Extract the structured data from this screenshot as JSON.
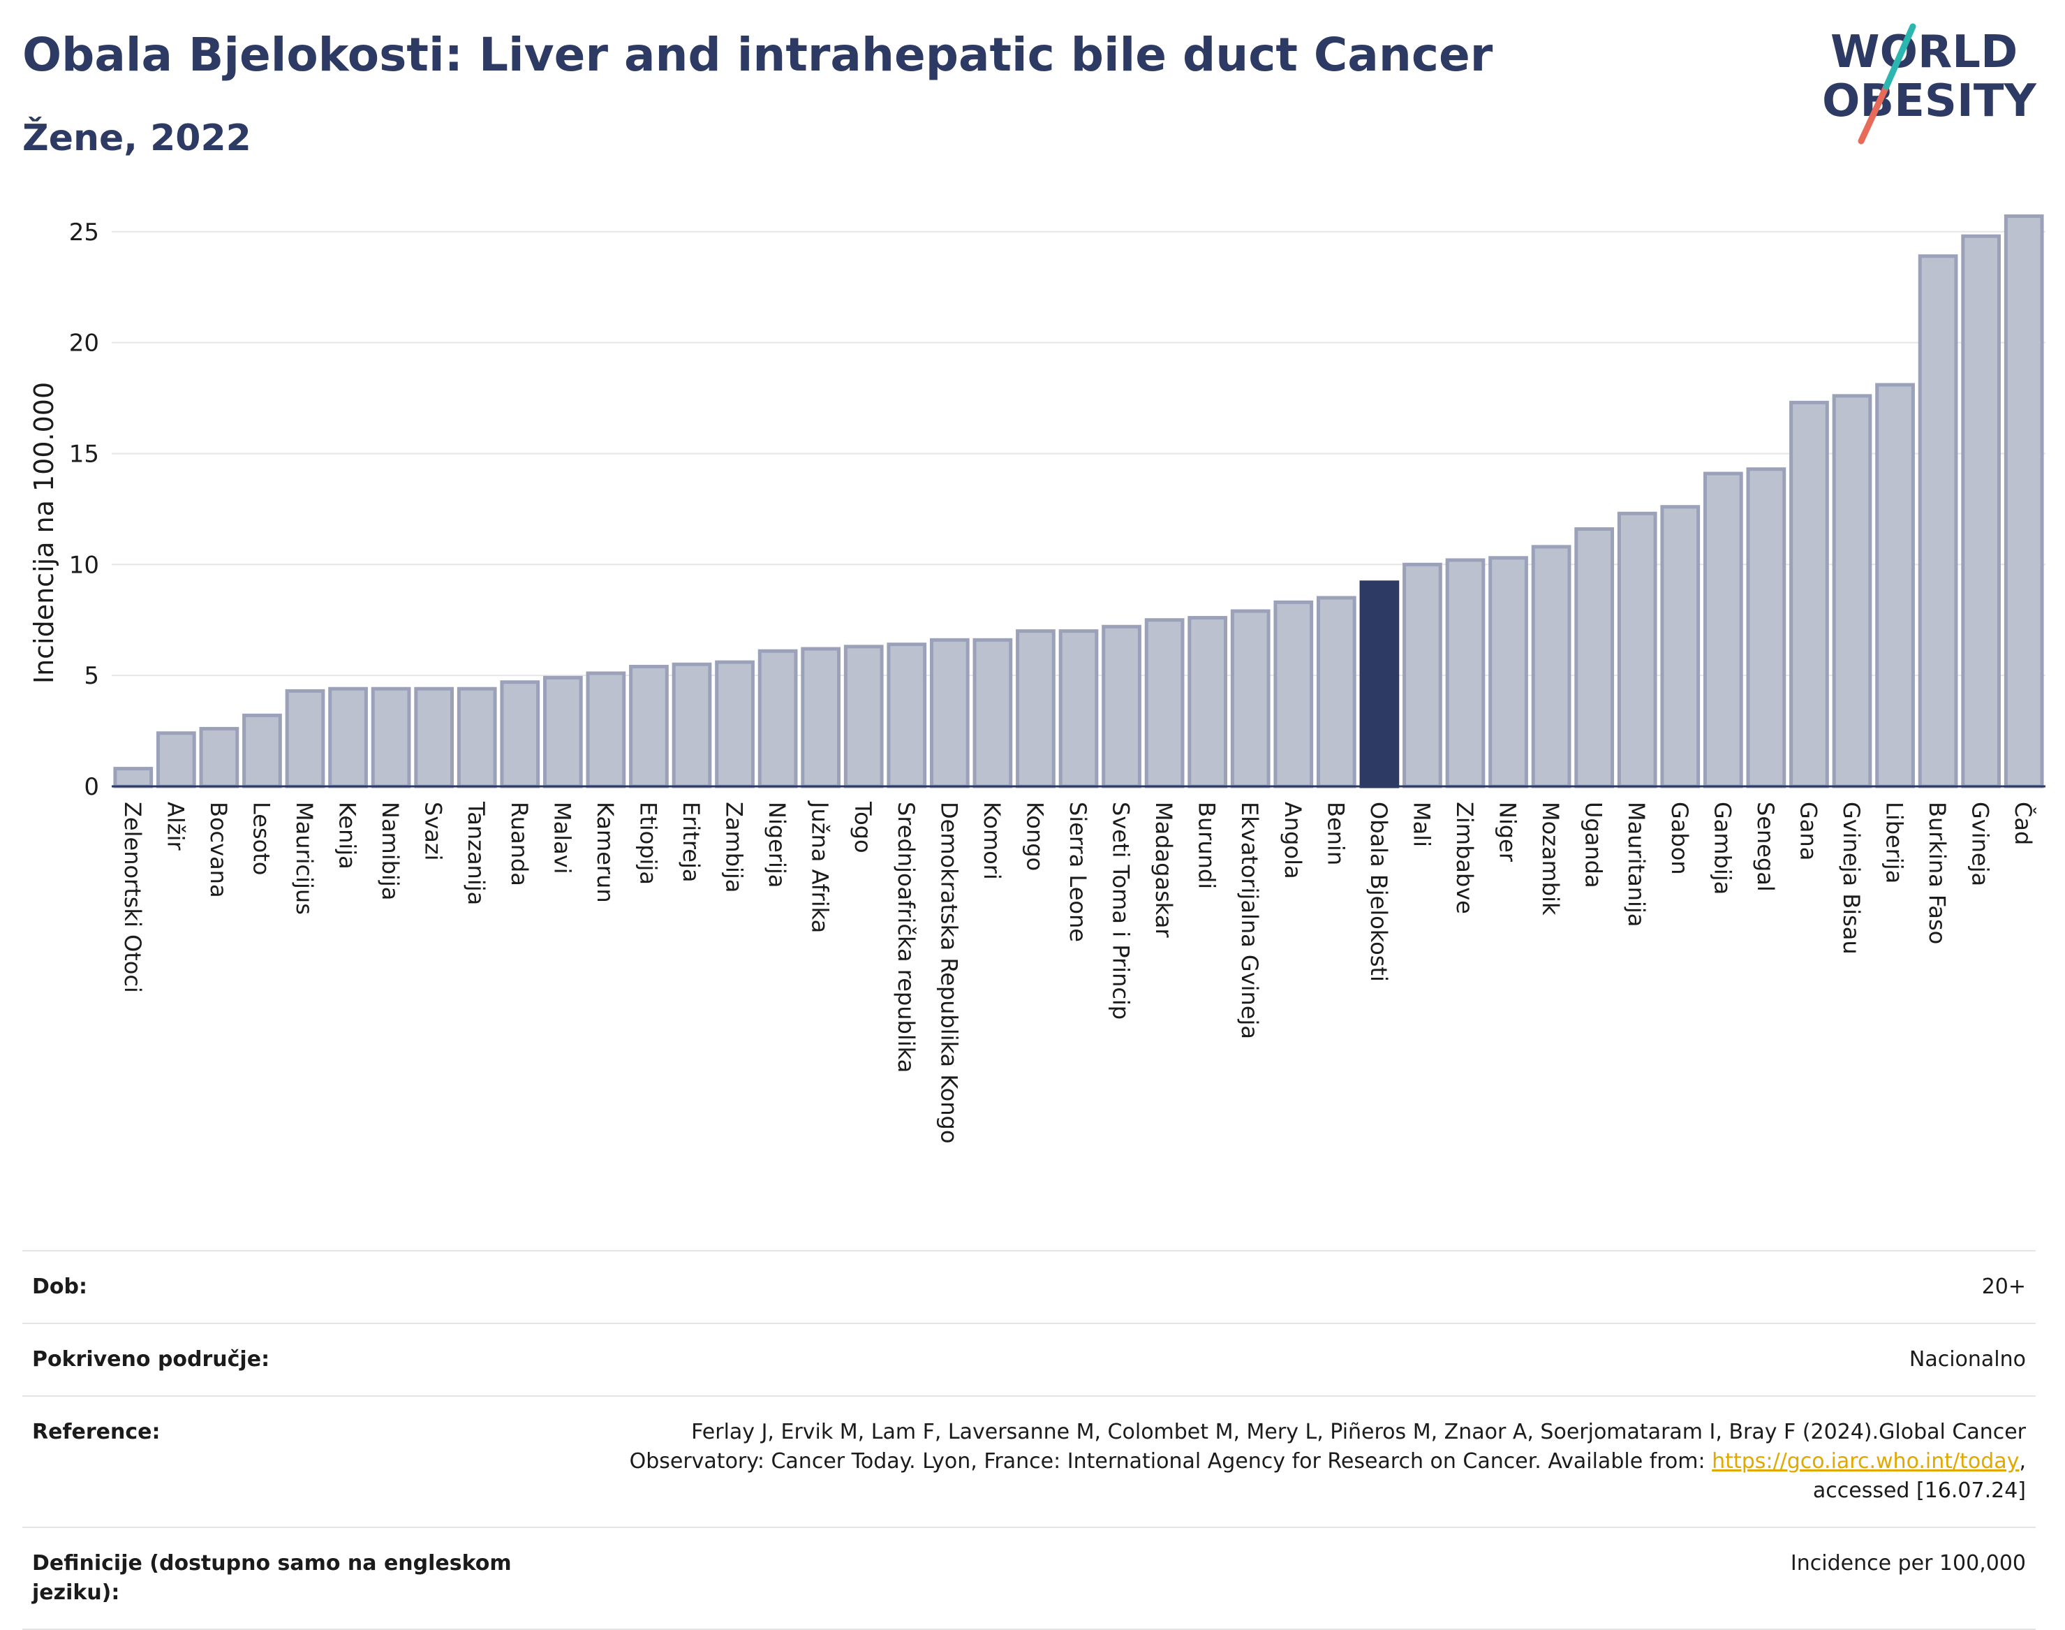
{
  "title": "Obala Bjelokosti: Liver and intrahepatic bile duct Cancer",
  "subtitle": "Žene, 2022",
  "logo": {
    "line1": "WORLD",
    "line2": "OBESITY"
  },
  "colors": {
    "bar": "#bcc1cf",
    "bar_edge": "#9aa1b8",
    "highlight": "#2d3a63",
    "title": "#2d3a63"
  },
  "chart_data": {
    "type": "bar",
    "ylabel": "Incidencija na 100.000",
    "ylim": [
      0,
      26
    ],
    "yticks": [
      0,
      5,
      10,
      15,
      20,
      25
    ],
    "grid": true,
    "highlight": "Obala Bjelokosti",
    "categories": [
      "Zelenortski Otoci",
      "Alžir",
      "Bocvana",
      "Lesoto",
      "Mauricijus",
      "Kenija",
      "Namibija",
      "Svazi",
      "Tanzanija",
      "Ruanda",
      "Malavi",
      "Kamerun",
      "Etiopija",
      "Eritreja",
      "Zambija",
      "Nigerija",
      "Južna Afrika",
      "Togo",
      "Srednjoafrička republika",
      "Demokratska Republika Kongo",
      "Komori",
      "Kongo",
      "Sierra Leone",
      "Sveti Toma i Princip",
      "Madagaskar",
      "Burundi",
      "Ekvatorijalna Gvineja",
      "Angola",
      "Benin",
      "Obala Bjelokosti",
      "Mali",
      "Zimbabve",
      "Niger",
      "Mozambik",
      "Uganda",
      "Mauritanija",
      "Gabon",
      "Gambija",
      "Senegal",
      "Gana",
      "Gvineja Bisau",
      "Liberija",
      "Burkina Faso",
      "Gvineja",
      "Čad"
    ],
    "values": [
      0.8,
      2.4,
      2.6,
      3.2,
      4.3,
      4.4,
      4.4,
      4.4,
      4.4,
      4.7,
      4.9,
      5.1,
      5.4,
      5.5,
      5.6,
      6.1,
      6.2,
      6.3,
      6.4,
      6.6,
      6.6,
      7.0,
      7.0,
      7.2,
      7.5,
      7.6,
      7.9,
      8.3,
      8.5,
      9.2,
      10.0,
      10.2,
      10.3,
      10.8,
      11.6,
      12.3,
      12.6,
      14.1,
      14.3,
      17.3,
      17.6,
      18.1,
      23.9,
      24.8,
      25.7
    ]
  },
  "meta": [
    {
      "key": "Dob:",
      "value": "20+"
    },
    {
      "key": "Pokriveno područje:",
      "value": "Nacionalno"
    },
    {
      "key": "Reference:",
      "value_pre": "Ferlay J, Ervik M, Lam F, Laversanne M, Colombet M, Mery L, Piñeros M, Znaor A, Soerjomataram I, Bray F (2024).Global Cancer Observatory: Cancer Today. Lyon, France: International Agency for Research on Cancer. Available from: ",
      "link": "https://gco.iarc.who.int/today",
      "value_post": ", accessed [16.07.24]"
    },
    {
      "key": "Definicije (dostupno samo na engleskom jeziku):",
      "value": "Incidence per 100,000"
    }
  ]
}
